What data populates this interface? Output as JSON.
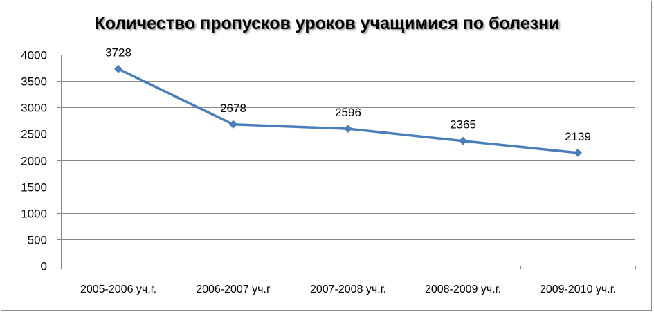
{
  "chart_data": {
    "type": "line",
    "title": "Количество пропусков уроков учащимися по болезни",
    "categories": [
      "2005-2006 уч.г.",
      "2006-2007 уч.г",
      "2007-2008 уч.г.",
      "2008-2009 уч.г.",
      "2009-2010 уч.г."
    ],
    "series": [
      {
        "values": [
          3728,
          2678,
          2596,
          2365,
          2139
        ]
      }
    ],
    "data_labels": [
      "3728",
      "2678",
      "2596",
      "2365",
      "2139"
    ],
    "ylim": [
      0,
      4000
    ],
    "yticks": [
      "0",
      "500",
      "1000",
      "1500",
      "2000",
      "2500",
      "3000",
      "3500",
      "4000"
    ],
    "grid": true,
    "legend": "none",
    "colors": {
      "line": "#4a7ebb",
      "grid": "#878787",
      "axis": "#878787"
    }
  }
}
